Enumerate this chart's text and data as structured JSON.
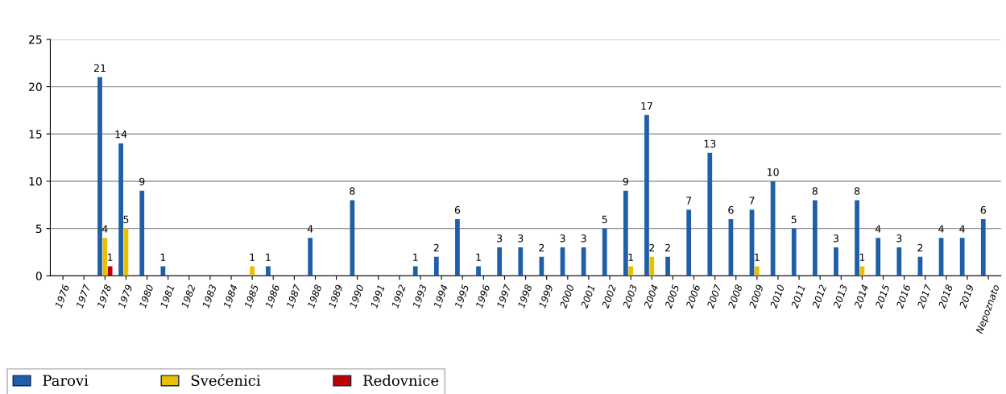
{
  "chart_data": {
    "type": "bar",
    "categories": [
      "1976",
      "1977",
      "1978",
      "1979",
      "1980",
      "1981",
      "1982",
      "1983",
      "1984",
      "1985",
      "1986",
      "1987",
      "1988",
      "1989",
      "1990",
      "1991",
      "1992",
      "1993",
      "1994",
      "1995",
      "1996",
      "1997",
      "1998",
      "1999",
      "2000",
      "2001",
      "2002",
      "2003",
      "2004",
      "2005",
      "2006",
      "2007",
      "2008",
      "2009",
      "2010",
      "2011",
      "2012",
      "2013",
      "2014",
      "2015",
      "2016",
      "2017",
      "2018",
      "2019",
      "Nepoznato"
    ],
    "series": [
      {
        "name": "Parovi",
        "color": "#1f5fa8",
        "values": [
          0,
          0,
          21,
          14,
          9,
          1,
          0,
          0,
          0,
          0,
          1,
          0,
          4,
          0,
          8,
          0,
          0,
          1,
          2,
          6,
          1,
          3,
          3,
          2,
          3,
          3,
          5,
          9,
          17,
          2,
          7,
          13,
          6,
          7,
          10,
          5,
          8,
          3,
          8,
          4,
          3,
          2,
          4,
          4,
          6
        ],
        "value_labels": [
          null,
          null,
          "21",
          "14",
          "9",
          "1",
          null,
          null,
          null,
          null,
          "1",
          null,
          "4",
          null,
          "8",
          null,
          null,
          "1",
          "2",
          "6",
          "1",
          "3",
          "3",
          "2",
          "3",
          "3",
          "5",
          "9",
          "17",
          "2",
          "7",
          "13",
          "6",
          "7",
          "10",
          "5",
          "8",
          "3",
          "8",
          "4",
          "3",
          "2",
          "4",
          "4",
          "6"
        ]
      },
      {
        "name": "Svećenici",
        "color": "#e8c000",
        "values": [
          0,
          0,
          4,
          5,
          0,
          0,
          0,
          0,
          0,
          1,
          0,
          0,
          0,
          0,
          0,
          0,
          0,
          0,
          0,
          0,
          0,
          0,
          0,
          0,
          0,
          0,
          0,
          1,
          2,
          0,
          0,
          0,
          0,
          1,
          0,
          0,
          0,
          0,
          1,
          0,
          0,
          0,
          0,
          0,
          0
        ],
        "value_labels": [
          null,
          null,
          "4",
          "5",
          null,
          null,
          null,
          null,
          null,
          "1",
          null,
          null,
          null,
          null,
          null,
          null,
          null,
          null,
          null,
          null,
          null,
          null,
          null,
          null,
          null,
          null,
          null,
          "1",
          "2",
          null,
          null,
          null,
          null,
          "1",
          null,
          null,
          null,
          null,
          "1",
          null,
          null,
          null,
          null,
          null,
          null
        ]
      },
      {
        "name": "Redovnice",
        "color": "#c00000",
        "values": [
          0,
          0,
          1,
          0,
          0,
          0,
          0,
          0,
          0,
          0,
          0,
          0,
          0,
          0,
          0,
          0,
          0,
          0,
          0,
          0,
          0,
          0,
          0,
          0,
          0,
          0,
          0,
          0,
          0,
          0,
          0,
          0,
          0,
          0,
          0,
          0,
          0,
          0,
          0,
          0,
          0,
          0,
          0,
          0,
          0
        ],
        "value_labels": [
          null,
          null,
          "1",
          null,
          null,
          null,
          null,
          null,
          null,
          null,
          null,
          null,
          null,
          null,
          null,
          null,
          null,
          null,
          null,
          null,
          null,
          null,
          null,
          null,
          null,
          null,
          null,
          null,
          null,
          null,
          null,
          null,
          null,
          null,
          null,
          null,
          null,
          null,
          null,
          null,
          null,
          null,
          null,
          null,
          null
        ]
      }
    ],
    "ylim": [
      0,
      25
    ],
    "yticks": [
      0,
      5,
      10,
      15,
      20,
      25
    ],
    "grid": "y",
    "legend": "bottom left"
  }
}
